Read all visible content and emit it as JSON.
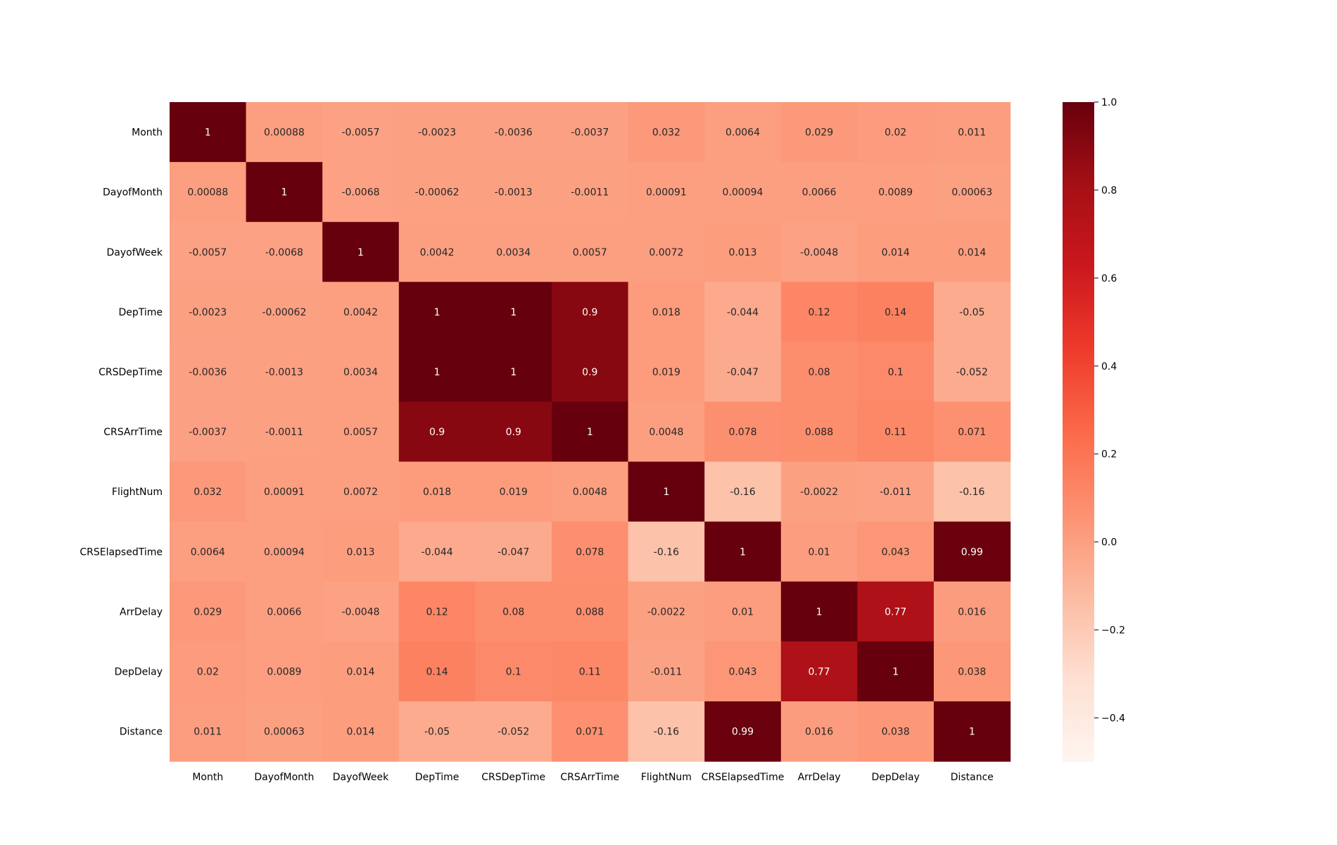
{
  "chart_data": {
    "type": "heatmap",
    "title": "",
    "xlabel": "",
    "ylabel": "",
    "labels": [
      "Month",
      "DayofMonth",
      "DayofWeek",
      "DepTime",
      "CRSDepTime",
      "CRSArrTime",
      "FlightNum",
      "CRSElapsedTime",
      "ArrDelay",
      "DepDelay",
      "Distance"
    ],
    "matrix": [
      [
        "1",
        "0.00088",
        "-0.0057",
        "-0.0023",
        "-0.0036",
        "-0.0037",
        "0.032",
        "0.0064",
        "0.029",
        "0.02",
        "0.011"
      ],
      [
        "0.00088",
        "1",
        "-0.0068",
        "-0.00062",
        "-0.0013",
        "-0.0011",
        "0.00091",
        "0.00094",
        "0.0066",
        "0.0089",
        "0.00063"
      ],
      [
        "-0.0057",
        "-0.0068",
        "1",
        "0.0042",
        "0.0034",
        "0.0057",
        "0.0072",
        "0.013",
        "-0.0048",
        "0.014",
        "0.014"
      ],
      [
        "-0.0023",
        "-0.00062",
        "0.0042",
        "1",
        "1",
        "0.9",
        "0.018",
        "-0.044",
        "0.12",
        "0.14",
        "-0.05"
      ],
      [
        "-0.0036",
        "-0.0013",
        "0.0034",
        "1",
        "1",
        "0.9",
        "0.019",
        "-0.047",
        "0.08",
        "0.1",
        "-0.052"
      ],
      [
        "-0.0037",
        "-0.0011",
        "0.0057",
        "0.9",
        "0.9",
        "1",
        "0.0048",
        "0.078",
        "0.088",
        "0.11",
        "0.071"
      ],
      [
        "0.032",
        "0.00091",
        "0.0072",
        "0.018",
        "0.019",
        "0.0048",
        "1",
        "-0.16",
        "-0.0022",
        "-0.011",
        "-0.16"
      ],
      [
        "0.0064",
        "0.00094",
        "0.013",
        "-0.044",
        "-0.047",
        "0.078",
        "-0.16",
        "1",
        "0.01",
        "0.043",
        "0.99"
      ],
      [
        "0.029",
        "0.0066",
        "-0.0048",
        "0.12",
        "0.08",
        "0.088",
        "-0.0022",
        "0.01",
        "1",
        "0.77",
        "0.016"
      ],
      [
        "0.02",
        "0.0089",
        "0.014",
        "0.14",
        "0.1",
        "0.11",
        "-0.011",
        "0.043",
        "0.77",
        "1",
        "0.038"
      ],
      [
        "0.011",
        "0.00063",
        "0.014",
        "-0.05",
        "-0.052",
        "0.071",
        "-0.16",
        "0.99",
        "0.016",
        "0.038",
        "1"
      ]
    ],
    "colorbar": {
      "colormap": "Reds",
      "range": [
        -0.5,
        1.0
      ],
      "ticks": [
        1.0,
        0.8,
        0.6,
        0.4,
        0.2,
        0.0,
        -0.2,
        -0.4
      ],
      "tick_labels": [
        "1.0",
        "0.8",
        "0.6",
        "0.4",
        "0.2",
        "0.0",
        "−0.2",
        "−0.4"
      ]
    },
    "grid": false,
    "legend": "colorbar-right"
  }
}
